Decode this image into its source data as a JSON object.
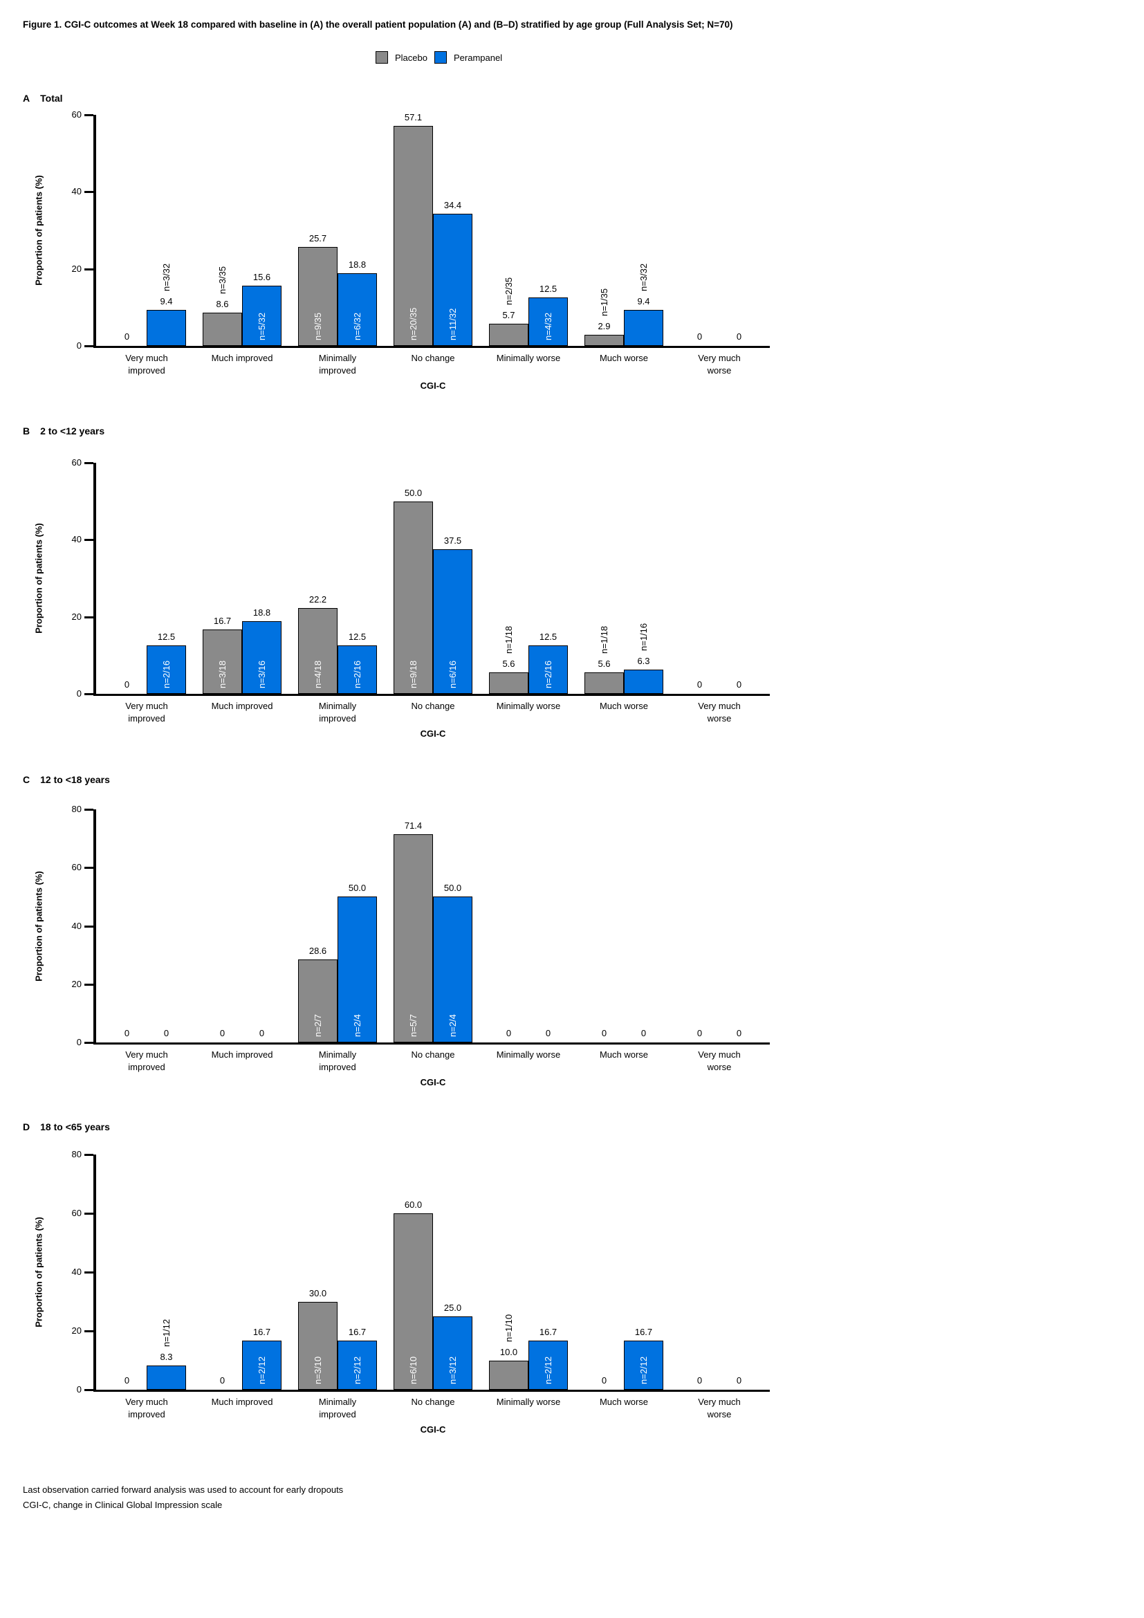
{
  "figure": {
    "title": "Figure 1. CGI-C outcomes at Week 18 compared with baseline in (A) the overall patient population (A) and (B–D) stratified by age group (Full Analysis Set; N=70)",
    "footnotes": [
      "Last observation carried forward analysis was used to account for early dropouts",
      "CGI-C, change in Clinical Global Impression scale"
    ]
  },
  "legend": {
    "items": [
      {
        "label": "Placebo",
        "color": "#8a8a8a"
      },
      {
        "label": "Perampanel",
        "color": "#0072e0"
      }
    ]
  },
  "colors": {
    "placebo": "#8a8a8a",
    "perampanel": "#0072e0",
    "bar_border": "#000000",
    "inside_label": "#ffffff"
  },
  "chart_data": [
    {
      "id": "a",
      "type": "bar",
      "panel_label": "A",
      "panel_title": "Total",
      "xlabel": "CGI-C",
      "ylabel": "Proportion of patients (%)",
      "ylim": [
        0,
        60
      ],
      "yticks": [
        0,
        20,
        40,
        60
      ],
      "categories": [
        "Very much\nimproved",
        "Much improved",
        "Minimally\nimproved",
        "No change",
        "Minimally worse",
        "Much worse",
        "Very much\nworse"
      ],
      "series": [
        {
          "name": "Placebo",
          "values": [
            0,
            8.6,
            25.7,
            57.1,
            5.7,
            2.9,
            0
          ],
          "n_labels": [
            "",
            "n=3/35",
            "n=9/35",
            "n=20/35",
            "n=2/35",
            "n=1/35",
            ""
          ],
          "n_inside": [
            false,
            false,
            true,
            true,
            false,
            false,
            false
          ]
        },
        {
          "name": "Perampanel",
          "values": [
            9.4,
            15.6,
            18.8,
            34.4,
            12.5,
            9.4,
            0
          ],
          "n_labels": [
            "n=3/32",
            "n=5/32",
            "n=6/32",
            "n=11/32",
            "n=4/32",
            "n=3/32",
            ""
          ],
          "n_inside": [
            false,
            true,
            true,
            true,
            true,
            false,
            false
          ]
        }
      ]
    },
    {
      "id": "b",
      "type": "bar",
      "panel_label": "B",
      "panel_title": "2 to <12 years",
      "xlabel": "CGI-C",
      "ylabel": "Proportion of patients (%)",
      "ylim": [
        0,
        60
      ],
      "yticks": [
        0,
        20,
        40,
        60
      ],
      "categories": [
        "Very much\nimproved",
        "Much improved",
        "Minimally\nimproved",
        "No change",
        "Minimally worse",
        "Much worse",
        "Very much\nworse"
      ],
      "series": [
        {
          "name": "Placebo",
          "values": [
            0,
            16.7,
            22.2,
            50.0,
            5.6,
            5.6,
            0
          ],
          "n_labels": [
            "",
            "n=3/18",
            "n=4/18",
            "n=9/18",
            "n=1/18",
            "n=1/18",
            ""
          ],
          "n_inside": [
            false,
            true,
            true,
            true,
            false,
            false,
            false
          ]
        },
        {
          "name": "Perampanel",
          "values": [
            12.5,
            18.8,
            12.5,
            37.5,
            12.5,
            6.3,
            0
          ],
          "n_labels": [
            "n=2/16",
            "n=3/16",
            "n=2/16",
            "n=6/16",
            "n=2/16",
            "n=1/16",
            ""
          ],
          "n_inside": [
            true,
            true,
            true,
            true,
            true,
            false,
            false
          ]
        }
      ]
    },
    {
      "id": "c",
      "type": "bar",
      "panel_label": "C",
      "panel_title": "12 to <18 years",
      "xlabel": "CGI-C",
      "ylabel": "Proportion of patients (%)",
      "ylim": [
        0,
        80
      ],
      "yticks": [
        0,
        20,
        40,
        60,
        80
      ],
      "categories": [
        "Very much\nimproved",
        "Much improved",
        "Minimally\nimproved",
        "No change",
        "Minimally worse",
        "Much worse",
        "Very much\nworse"
      ],
      "series": [
        {
          "name": "Placebo",
          "values": [
            0,
            0,
            28.6,
            71.4,
            0,
            0,
            0
          ],
          "n_labels": [
            "",
            "",
            "n=2/7",
            "n=5/7",
            "",
            "",
            ""
          ],
          "n_inside": [
            false,
            false,
            true,
            true,
            false,
            false,
            false
          ]
        },
        {
          "name": "Perampanel",
          "values": [
            0,
            0,
            50.0,
            50.0,
            0,
            0,
            0
          ],
          "n_labels": [
            "",
            "",
            "n=2/4",
            "n=2/4",
            "",
            "",
            ""
          ],
          "n_inside": [
            false,
            false,
            true,
            true,
            false,
            false,
            false
          ]
        }
      ]
    },
    {
      "id": "d",
      "type": "bar",
      "panel_label": "D",
      "panel_title": "18 to <65 years",
      "xlabel": "CGI-C",
      "ylabel": "Proportion of patients (%)",
      "ylim": [
        0,
        80
      ],
      "yticks": [
        0,
        20,
        40,
        60,
        80
      ],
      "categories": [
        "Very much\nimproved",
        "Much improved",
        "Minimally\nimproved",
        "No change",
        "Minimally worse",
        "Much worse",
        "Very much\nworse"
      ],
      "series": [
        {
          "name": "Placebo",
          "values": [
            0,
            0,
            30.0,
            60.0,
            10.0,
            0,
            0
          ],
          "n_labels": [
            "",
            "",
            "n=3/10",
            "n=6/10",
            "n=1/10",
            "",
            ""
          ],
          "n_inside": [
            false,
            false,
            true,
            true,
            false,
            false,
            false
          ]
        },
        {
          "name": "Perampanel",
          "values": [
            8.3,
            16.7,
            16.7,
            25.0,
            16.7,
            16.7,
            0
          ],
          "n_labels": [
            "n=1/12",
            "n=2/12",
            "n=2/12",
            "n=3/12",
            "n=2/12",
            "n=2/12",
            ""
          ],
          "n_inside": [
            false,
            true,
            true,
            true,
            true,
            true,
            false
          ]
        }
      ]
    }
  ]
}
